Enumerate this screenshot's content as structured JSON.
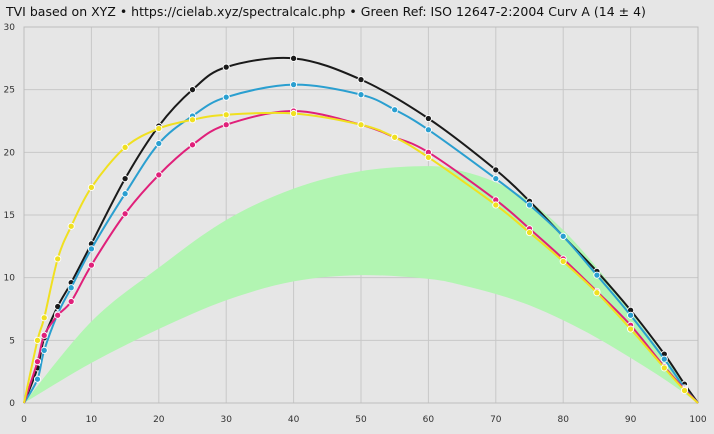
{
  "chart_data": {
    "type": "line",
    "title": "TVI based on XYZ  •  https://cielab.xyz/spectralcalc.php  •  Green Ref: ISO 12647-2:2004 Curv A (14 ± 4)",
    "xlabel": "",
    "ylabel": "",
    "xlim": [
      0,
      100
    ],
    "ylim": [
      0,
      30
    ],
    "x_ticks": [
      0,
      10,
      20,
      30,
      40,
      50,
      60,
      70,
      80,
      90,
      100
    ],
    "y_ticks": [
      0,
      5,
      10,
      15,
      20,
      25,
      30
    ],
    "grid": true,
    "legend": "none",
    "colors": {
      "background": "#e6e6e6",
      "grid": "#c8c8c8",
      "band": "#b2f5b2"
    },
    "reference_band": {
      "x": [
        0,
        10,
        20,
        30,
        40,
        50,
        60,
        65,
        70,
        75,
        80,
        85,
        90,
        95,
        100
      ],
      "lower": [
        0,
        3.2,
        5.9,
        8.2,
        9.7,
        10.2,
        9.9,
        9.4,
        8.7,
        7.8,
        6.6,
        5.2,
        3.6,
        1.9,
        0
      ],
      "upper": [
        0,
        6.5,
        10.8,
        14.6,
        17.1,
        18.5,
        18.9,
        18.5,
        17.6,
        16.1,
        13.8,
        10.8,
        7.3,
        3.7,
        0
      ]
    },
    "series": [
      {
        "color": "#1a1a1a",
        "x": [
          0,
          2,
          3,
          5,
          7,
          10,
          15,
          20,
          25,
          30,
          40,
          50,
          60,
          70,
          75,
          80,
          85,
          90,
          95,
          98,
          100
        ],
        "values": [
          0,
          2.8,
          5.2,
          7.7,
          9.6,
          12.7,
          17.9,
          22.1,
          25.0,
          26.8,
          27.5,
          25.8,
          22.7,
          18.6,
          16.1,
          13.3,
          10.5,
          7.4,
          3.9,
          1.5,
          0
        ]
      },
      {
        "color": "#2a9fd0",
        "x": [
          0,
          2,
          3,
          5,
          7,
          10,
          15,
          20,
          25,
          30,
          40,
          50,
          55,
          60,
          70,
          75,
          80,
          85,
          90,
          95,
          98,
          100
        ],
        "values": [
          0,
          1.9,
          4.2,
          7.1,
          9.2,
          12.3,
          16.7,
          20.7,
          22.9,
          24.4,
          25.4,
          24.6,
          23.4,
          21.8,
          17.9,
          15.8,
          13.3,
          10.2,
          7.0,
          3.5,
          1.2,
          0
        ]
      },
      {
        "color": "#e0207a",
        "x": [
          0,
          2,
          3,
          5,
          7,
          10,
          15,
          20,
          25,
          30,
          40,
          50,
          55,
          60,
          70,
          75,
          80,
          85,
          90,
          95,
          98,
          100
        ],
        "values": [
          0,
          3.3,
          5.4,
          7.0,
          8.1,
          11.0,
          15.1,
          18.2,
          20.6,
          22.2,
          23.3,
          22.2,
          21.2,
          20.0,
          16.2,
          13.9,
          11.5,
          8.9,
          6.2,
          2.9,
          1.1,
          0
        ]
      },
      {
        "color": "#f0e020",
        "x": [
          0,
          2,
          3,
          5,
          7,
          10,
          15,
          20,
          25,
          30,
          40,
          50,
          55,
          60,
          70,
          75,
          80,
          85,
          90,
          95,
          98,
          100
        ],
        "values": [
          0,
          5.0,
          6.8,
          11.5,
          14.1,
          17.2,
          20.4,
          21.9,
          22.6,
          23.0,
          23.1,
          22.2,
          21.2,
          19.6,
          15.8,
          13.6,
          11.3,
          8.8,
          5.9,
          2.8,
          1.0,
          0
        ]
      }
    ]
  }
}
